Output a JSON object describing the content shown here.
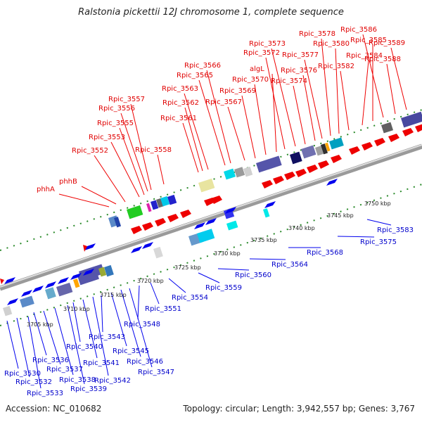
{
  "title": "Ralstonia pickettii 12J chromosome 1, complete sequence",
  "accession_text": "Accession: NC_010682",
  "summary_text": "Topology: circular; Length: 3,942,557 bp; Genes: 3,767",
  "colors": {
    "forward": "#ee0000",
    "reverse": "#0000ee",
    "backbone": "#aaaaaa",
    "dots": "#228822"
  },
  "kbp_labels": [
    "3705 kbp",
    "3710 kbp",
    "3715 kbp",
    "3720 kbp",
    "3725 kbp",
    "3730 kbp",
    "3735 kbp",
    "3740 kbp",
    "3745 kbp",
    "3750 kbp"
  ],
  "top_labels": [
    "phhA",
    "phhB",
    "Rpic_3552",
    "Rpic_3553",
    "Rpic_3555",
    "Rpic_3556",
    "Rpic_3557",
    "Rpic_3558",
    "Rpic_3561",
    "Rpic_3562",
    "Rpic_3563",
    "Rpic_3565",
    "Rpic_3566",
    "Rpic_3567",
    "Rpic_3569",
    "Rpic_3570",
    "algL",
    "Rpic_3572",
    "Rpic_3573",
    "Rpic_3574",
    "Rpic_3576",
    "Rpic_3577",
    "Rpic_3578",
    "Rpic_3580",
    "Rpic_3582",
    "Rpic_3584",
    "Rpic_3585",
    "Rpic_3586",
    "Rpic_3588",
    "Rpic_3589"
  ],
  "bottom_labels": [
    "Rpic_3530",
    "Rpic_3532",
    "Rpic_3533",
    "Rpic_3536",
    "Rpic_3537",
    "Rpic_3538",
    "Rpic_3539",
    "Rpic_3540",
    "Rpic_3541",
    "Rpic_3542",
    "Rpic_3543",
    "Rpic_3545",
    "Rpic_3546",
    "Rpic_3547",
    "Rpic_3548",
    "Rpic_3551",
    "Rpic_3554",
    "Rpic_3559",
    "Rpic_3560",
    "Rpic_3564",
    "Rpic_3568",
    "Rpic_3575",
    "Rpic_3583"
  ]
}
